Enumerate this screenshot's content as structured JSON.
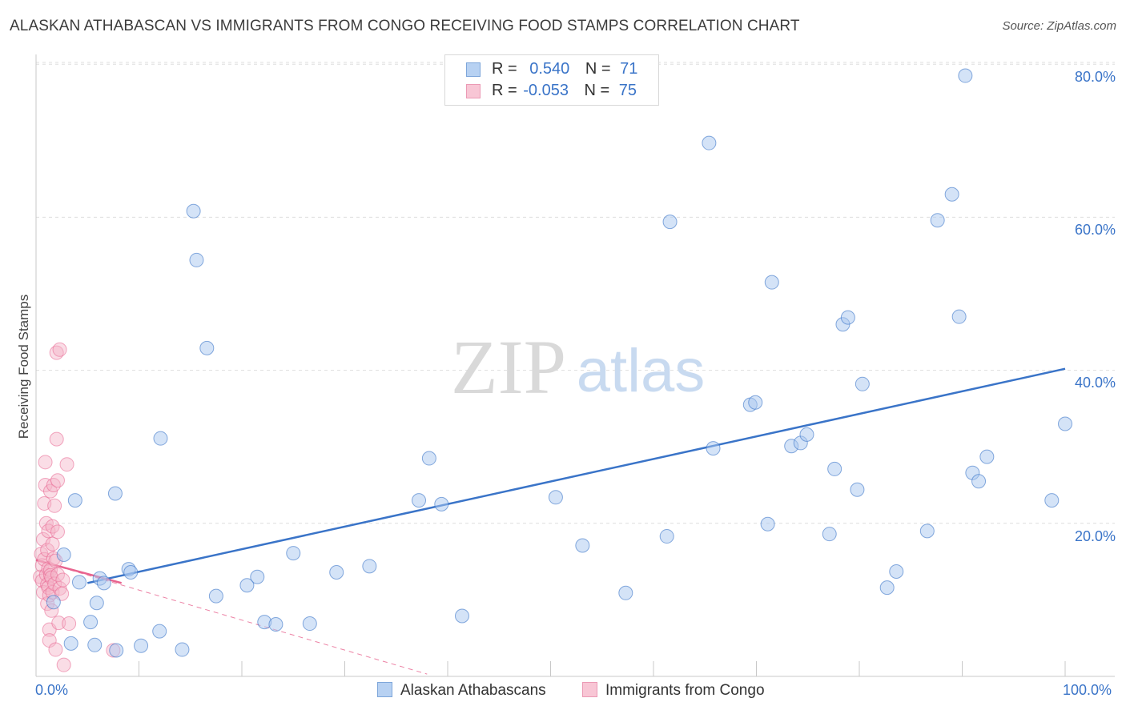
{
  "title": "ALASKAN ATHABASCAN VS IMMIGRANTS FROM CONGO RECEIVING FOOD STAMPS CORRELATION CHART",
  "source": "Source: ZipAtlas.com",
  "watermark": {
    "zip": "ZIP",
    "atlas": "atlas"
  },
  "legend": {
    "series1": {
      "r_label": "R =",
      "r_value": "0.540",
      "n_label": "N =",
      "n_value": "71"
    },
    "series2": {
      "r_label": "R =",
      "r_value": "-0.053",
      "n_label": "N =",
      "n_value": "75"
    }
  },
  "colors": {
    "blue": "#3a74c8",
    "blue_fill": "#a9c8ef",
    "pink": "#e8648f",
    "pink_fill": "#f5b3c7"
  },
  "chart_data": {
    "type": "scatter",
    "title": "ALASKAN ATHABASCAN VS IMMIGRANTS FROM CONGO RECEIVING FOOD STAMPS CORRELATION CHART",
    "xlabel": "",
    "ylabel": "Receiving Food Stamps",
    "x_tick_labels": [
      "0.0%",
      "100.0%"
    ],
    "y_tick_labels": [
      "20.0%",
      "40.0%",
      "60.0%",
      "80.0%"
    ],
    "y_tick_values": [
      20,
      40,
      60,
      80
    ],
    "xlim": [
      0,
      100
    ],
    "ylim": [
      0,
      82
    ],
    "grid": true,
    "series": [
      {
        "name": "Alaskan Athabascans",
        "color": "#3a74c8",
        "trend": {
          "x": [
            5,
            100
          ],
          "y": [
            12.2,
            40.2
          ]
        },
        "points": [
          [
            1.7,
            9.7
          ],
          [
            2.7,
            15.9
          ],
          [
            3.4,
            4.3
          ],
          [
            3.8,
            23.0
          ],
          [
            4.2,
            12.3
          ],
          [
            5.3,
            7.1
          ],
          [
            5.7,
            4.1
          ],
          [
            6.2,
            12.8
          ],
          [
            5.9,
            9.6
          ],
          [
            6.6,
            12.2
          ],
          [
            7.7,
            23.9
          ],
          [
            7.8,
            3.4
          ],
          [
            9.0,
            14.0
          ],
          [
            9.2,
            13.6
          ],
          [
            10.2,
            4.0
          ],
          [
            12.0,
            5.9
          ],
          [
            12.1,
            31.1
          ],
          [
            14.2,
            3.5
          ],
          [
            15.3,
            60.8
          ],
          [
            15.6,
            54.4
          ],
          [
            16.6,
            42.9
          ],
          [
            17.5,
            10.5
          ],
          [
            20.5,
            11.9
          ],
          [
            21.5,
            13.0
          ],
          [
            22.2,
            7.1
          ],
          [
            23.3,
            6.8
          ],
          [
            25.0,
            16.1
          ],
          [
            26.6,
            6.9
          ],
          [
            29.2,
            13.6
          ],
          [
            32.4,
            14.4
          ],
          [
            37.2,
            23.0
          ],
          [
            38.2,
            28.5
          ],
          [
            39.4,
            22.5
          ],
          [
            41.4,
            7.9
          ],
          [
            50.5,
            23.4
          ],
          [
            53.1,
            17.1
          ],
          [
            57.3,
            10.9
          ],
          [
            61.3,
            18.3
          ],
          [
            61.6,
            59.4
          ],
          [
            65.4,
            69.7
          ],
          [
            65.8,
            29.8
          ],
          [
            69.4,
            35.5
          ],
          [
            69.9,
            35.8
          ],
          [
            71.1,
            19.9
          ],
          [
            71.5,
            51.5
          ],
          [
            73.4,
            30.1
          ],
          [
            74.3,
            30.5
          ],
          [
            74.9,
            31.6
          ],
          [
            77.1,
            18.6
          ],
          [
            77.6,
            27.1
          ],
          [
            78.4,
            46.0
          ],
          [
            78.9,
            46.9
          ],
          [
            79.8,
            24.4
          ],
          [
            80.3,
            38.2
          ],
          [
            82.7,
            11.6
          ],
          [
            83.6,
            13.7
          ],
          [
            86.6,
            19.0
          ],
          [
            87.6,
            59.6
          ],
          [
            89.0,
            63.0
          ],
          [
            89.7,
            47.0
          ],
          [
            90.3,
            78.5
          ],
          [
            91.0,
            26.6
          ],
          [
            91.6,
            25.5
          ],
          [
            92.4,
            28.7
          ],
          [
            98.7,
            23.0
          ],
          [
            100.0,
            33.0
          ]
        ]
      },
      {
        "name": "Immigrants from Congo",
        "color": "#e8648f",
        "trend": {
          "x": [
            0,
            8.3
          ],
          "y": [
            15.2,
            12.2
          ]
        },
        "trend_extended": {
          "x": [
            0,
            38
          ],
          "y": [
            15.2,
            0.3
          ]
        },
        "points": [
          [
            0.4,
            13.0
          ],
          [
            0.5,
            16.0
          ],
          [
            0.6,
            12.5
          ],
          [
            0.6,
            14.5
          ],
          [
            0.7,
            11.0
          ],
          [
            0.7,
            17.9
          ],
          [
            0.8,
            15.3
          ],
          [
            0.8,
            22.6
          ],
          [
            0.9,
            25.0
          ],
          [
            0.9,
            28.0
          ],
          [
            1.0,
            13.3
          ],
          [
            1.0,
            20.0
          ],
          [
            1.1,
            9.5
          ],
          [
            1.1,
            12.0
          ],
          [
            1.1,
            16.5
          ],
          [
            1.2,
            11.6
          ],
          [
            1.2,
            14.1
          ],
          [
            1.2,
            19.0
          ],
          [
            1.3,
            10.6
          ],
          [
            1.3,
            6.1
          ],
          [
            1.3,
            4.7
          ],
          [
            1.4,
            13.9
          ],
          [
            1.4,
            24.2
          ],
          [
            1.4,
            13.2
          ],
          [
            1.5,
            12.9
          ],
          [
            1.5,
            8.6
          ],
          [
            1.6,
            11.0
          ],
          [
            1.6,
            17.3
          ],
          [
            1.6,
            19.6
          ],
          [
            1.7,
            25.0
          ],
          [
            1.7,
            15.4
          ],
          [
            1.8,
            22.3
          ],
          [
            1.8,
            12.1
          ],
          [
            1.9,
            15.1
          ],
          [
            1.9,
            3.5
          ],
          [
            2.0,
            31.0
          ],
          [
            2.0,
            42.3
          ],
          [
            2.1,
            25.6
          ],
          [
            2.1,
            18.9
          ],
          [
            2.1,
            13.3
          ],
          [
            2.2,
            7.0
          ],
          [
            2.3,
            11.5
          ],
          [
            2.3,
            42.7
          ],
          [
            2.5,
            10.8
          ],
          [
            2.6,
            12.6
          ],
          [
            2.7,
            1.5
          ],
          [
            3.0,
            27.7
          ],
          [
            3.2,
            6.9
          ],
          [
            7.5,
            3.4
          ]
        ]
      }
    ]
  },
  "bottom_legend": {
    "series1": "Alaskan Athabascans",
    "series2": "Immigrants from Congo"
  }
}
